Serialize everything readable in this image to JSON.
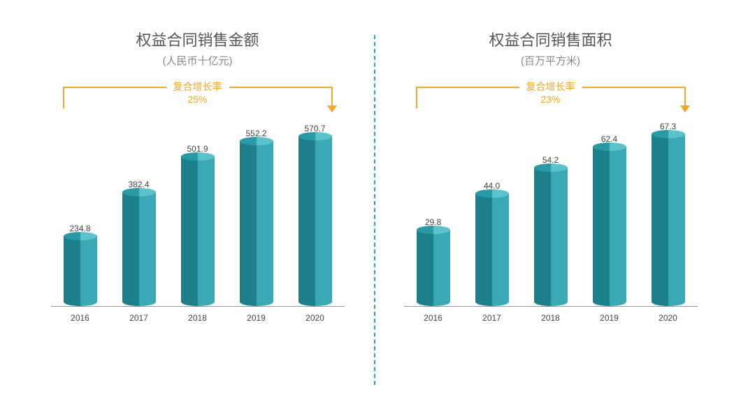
{
  "divider_color": "#2aa6b3",
  "growth_label_text": "复合增长率",
  "arrow_color": "#f5a623",
  "growth_text_color": "#f5a623",
  "bar_fill_dark": "#1d7f8a",
  "bar_fill_light": "#3aa9b5",
  "bar_top_dark": "#279aa6",
  "bar_top_light": "#5cc2cc",
  "axis_color": "#999999",
  "categories": [
    "2016",
    "2017",
    "2018",
    "2019",
    "2020"
  ],
  "left_chart": {
    "title": "权益合同销售金额",
    "subtitle": "(人民币十亿元)",
    "growth_value": "25%",
    "ymax": 600,
    "values": [
      234.8,
      382.4,
      501.9,
      552.2,
      570.7
    ],
    "value_labels": [
      "234.8",
      "382.4",
      "501.9",
      "552.2",
      "570.7"
    ]
  },
  "right_chart": {
    "title": "权益合同销售面积",
    "subtitle": "(百万平方米)",
    "growth_value": "23%",
    "ymax": 70,
    "values": [
      29.8,
      44.0,
      54.2,
      62.4,
      67.3
    ],
    "value_labels": [
      "29.8",
      "44.0",
      "54.2",
      "62.4",
      "67.3"
    ]
  }
}
